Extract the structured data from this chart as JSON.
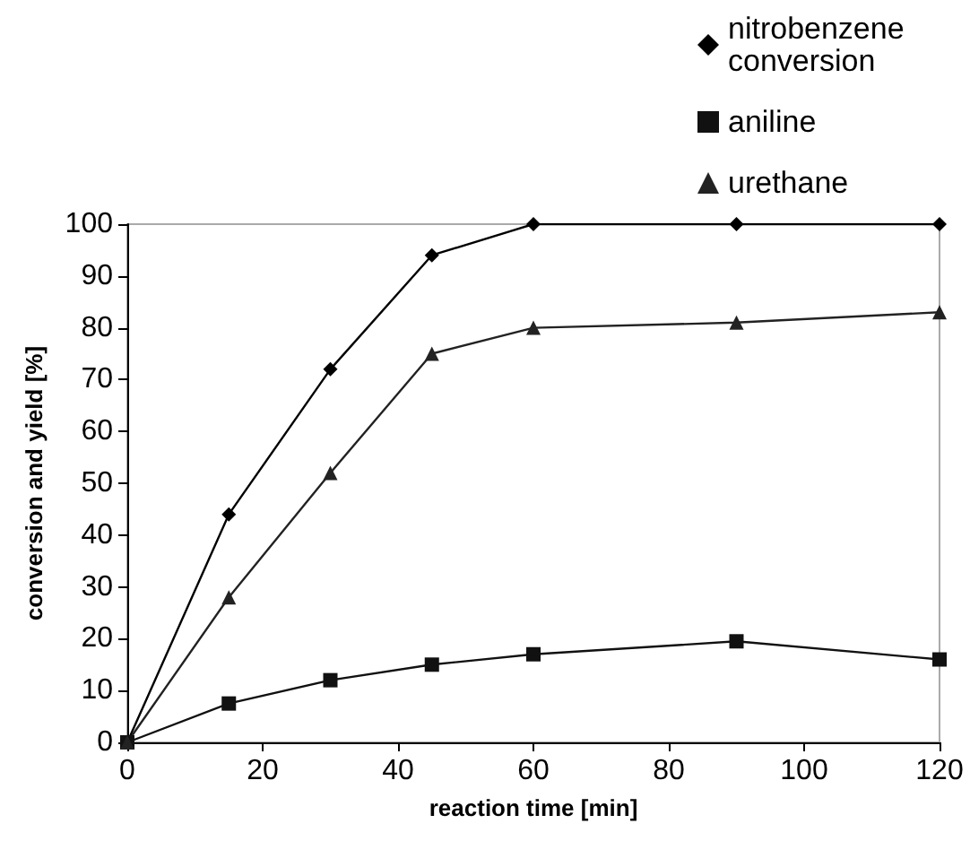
{
  "chart_data": {
    "type": "line",
    "xlabel": "reaction time [min]",
    "ylabel": "conversion and yield [%]",
    "x": [
      0,
      15,
      30,
      45,
      60,
      90,
      120
    ],
    "series": [
      {
        "name": "nitrobenzene conversion",
        "color": "#000000",
        "marker": "diamond",
        "values": [
          0,
          44,
          72,
          94,
          100,
          100,
          100
        ]
      },
      {
        "name": "aniline",
        "color": "#111111",
        "marker": "square",
        "values": [
          0,
          7.5,
          12,
          15,
          17,
          19.5,
          16
        ]
      },
      {
        "name": "urethane",
        "color": "#222222",
        "marker": "triangle",
        "values": [
          0,
          28,
          52,
          75,
          80,
          81,
          83
        ]
      }
    ],
    "xlim": [
      0,
      120
    ],
    "xticks": [
      0,
      20,
      40,
      60,
      80,
      100,
      120
    ],
    "ylim": [
      0,
      100
    ],
    "yticks": [
      0,
      10,
      20,
      30,
      40,
      50,
      60,
      70,
      80,
      90,
      100
    ],
    "grid": false,
    "legend": "top right",
    "line_style": "solid"
  }
}
